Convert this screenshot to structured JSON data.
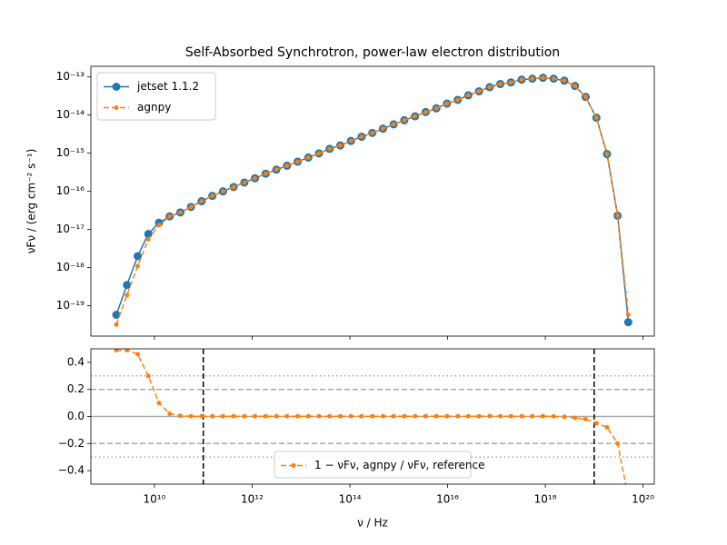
{
  "chart_data": [
    {
      "type": "line",
      "title": "Self-Absorbed Synchrotron, power-law electron distribution",
      "ylabel": "νFν / (erg cm⁻² s⁻¹)",
      "log_x": true,
      "log_y": true,
      "xlim": [
        500000000.0,
        1.7e+20
      ],
      "ylim": [
        1.6e-20,
        1.9e-13
      ],
      "xticks": [
        10000000000.0,
        1000000000000.0,
        100000000000000.0,
        1e+16,
        1e+18,
        1e+20
      ],
      "yticks": [
        {
          "value": 1e-19,
          "label": "10⁻¹⁹"
        },
        {
          "value": 1e-18,
          "label": "10⁻¹⁸"
        },
        {
          "value": 1e-17,
          "label": "10⁻¹⁷"
        },
        {
          "value": 1e-16,
          "label": "10⁻¹⁶"
        },
        {
          "value": 1e-15,
          "label": "10⁻¹⁵"
        },
        {
          "value": 1e-14,
          "label": "10⁻¹⁴"
        },
        {
          "value": 1e-13,
          "label": "10⁻¹³"
        }
      ],
      "legend": "upper left",
      "x": [
        1660000000.0,
        2740000000.0,
        4540000000.0,
        7500000000.0,
        12400000000.0,
        20500000000.0,
        33900000000.0,
        56000000000.0,
        92500000000.0,
        153000000000.0,
        253000000000.0,
        418000000000.0,
        692000000000.0,
        1140000000000.0,
        1890000000000.0,
        3130000000000.0,
        5160000000000.0,
        8530000000000.0,
        14100000000000.0,
        23300000000000.0,
        38500000000000.0,
        63700000000000.0,
        105000000000000.0,
        174000000000000.0,
        288000000000000.0,
        476000000000000.0,
        787000000000000.0,
        1300000000000000.0,
        2150000000000000.0,
        3560000000000000.0,
        5870000000000000.0,
        9710000000000000.0,
        1.61e+16,
        2.65e+16,
        4.39e+16,
        7.26e+16,
        1.2e+17,
        1.98e+17,
        3.28e+17,
        5.42e+17,
        8.95e+17,
        1.48e+18,
        2.45e+18,
        4.05e+18,
        6.68e+18,
        1.11e+19,
        1.83e+19,
        3.02e+19,
        4.99e+19
      ],
      "series": [
        {
          "name": "jetset 1.1.2",
          "color": "#1f77b4",
          "style": "solid",
          "marker_size": 4.5,
          "values": [
            5.8e-20,
            3.5e-19,
            2e-18,
            7.6e-18,
            1.5e-17,
            2.2e-17,
            2.8e-17,
            3.9e-17,
            5.5e-17,
            7.6e-17,
            1e-16,
            1.3e-16,
            1.7e-16,
            2.2e-16,
            2.9e-16,
            3.7e-16,
            4.7e-16,
            6e-16,
            7.7e-16,
            9.9e-16,
            1.3e-15,
            1.6e-15,
            2.1e-15,
            2.7e-15,
            3.4e-15,
            4.4e-15,
            5.7e-15,
            7.3e-15,
            9.3e-15,
            1.2e-14,
            1.5e-14,
            2e-14,
            2.5e-14,
            3.3e-14,
            4.2e-14,
            5.4e-14,
            6.5e-14,
            7.2e-14,
            8.5e-14,
            9e-14,
            9.5e-14,
            9e-14,
            8e-14,
            5.8e-14,
            3e-14,
            8.5e-15,
            9.5e-16,
            2.3e-17,
            3.7e-20
          ]
        },
        {
          "name": "agnpy",
          "color": "#ff7f0e",
          "style": "dashed",
          "marker_size": 2.5,
          "values": [
            3.2e-20,
            1.9e-19,
            1.1e-18,
            5.5e-18,
            1.3e-17,
            2.2e-17,
            2.8e-17,
            3.9e-17,
            5.5e-17,
            7.6e-17,
            1e-16,
            1.3e-16,
            1.7e-16,
            2.2e-16,
            2.9e-16,
            3.7e-16,
            4.7e-16,
            6e-16,
            7.7e-16,
            9.9e-16,
            1.3e-15,
            1.6e-15,
            2.1e-15,
            2.7e-15,
            3.4e-15,
            4.4e-15,
            5.7e-15,
            7.3e-15,
            9.3e-15,
            1.2e-14,
            1.5e-14,
            2e-14,
            2.5e-14,
            3.3e-14,
            4.2e-14,
            5.4e-14,
            6.5e-14,
            7.2e-14,
            8.5e-14,
            9e-14,
            9.5e-14,
            9e-14,
            8e-14,
            5.8e-14,
            3e-14,
            8.5e-15,
            9.5e-16,
            2.3e-17,
            5.8e-20
          ]
        }
      ]
    },
    {
      "type": "line",
      "xlabel": "ν / Hz",
      "log_x": true,
      "log_y": false,
      "xlim": [
        500000000.0,
        1.7e+20
      ],
      "ylim": [
        -0.5,
        0.5
      ],
      "xticks": [
        {
          "value": 10000000000.0,
          "label": "10¹⁰"
        },
        {
          "value": 1000000000000.0,
          "label": "10¹²"
        },
        {
          "value": 100000000000000.0,
          "label": "10¹⁴"
        },
        {
          "value": 1e+16,
          "label": "10¹⁶"
        },
        {
          "value": 1e+18,
          "label": "10¹⁸"
        },
        {
          "value": 1e+20,
          "label": "10²⁰"
        }
      ],
      "yticks": [
        {
          "value": -0.4,
          "label": "−0.4"
        },
        {
          "value": -0.2,
          "label": "−0.2"
        },
        {
          "value": 0,
          "label": "0.0"
        },
        0.2,
        0.4
      ],
      "hlines": [
        {
          "y": 0,
          "style": "solid",
          "color": "#aaaaaa"
        },
        {
          "y": 0.2,
          "style": "dashed",
          "color": "#aaaaaa"
        },
        {
          "y": -0.2,
          "style": "dashed",
          "color": "#aaaaaa"
        },
        {
          "y": 0.3,
          "style": "dotted",
          "color": "#aaaaaa"
        },
        {
          "y": -0.3,
          "style": "dotted",
          "color": "#aaaaaa"
        }
      ],
      "vlines": [
        {
          "x": 100000000000.0,
          "style": "dashed",
          "color": "#000000"
        },
        {
          "x": 1e+19,
          "style": "dashed",
          "color": "#000000"
        }
      ],
      "legend": "lower center",
      "x": [
        1660000000.0,
        2740000000.0,
        4540000000.0,
        7500000000.0,
        12400000000.0,
        20500000000.0,
        33900000000.0,
        56000000000.0,
        92500000000.0,
        153000000000.0,
        253000000000.0,
        418000000000.0,
        692000000000.0,
        1140000000000.0,
        1890000000000.0,
        3130000000000.0,
        5160000000000.0,
        8530000000000.0,
        14100000000000.0,
        23300000000000.0,
        38500000000000.0,
        63700000000000.0,
        105000000000000.0,
        174000000000000.0,
        288000000000000.0,
        476000000000000.0,
        787000000000000.0,
        1300000000000000.0,
        2150000000000000.0,
        3560000000000000.0,
        5870000000000000.0,
        9710000000000000.0,
        1.61e+16,
        2.65e+16,
        4.39e+16,
        7.26e+16,
        1.2e+17,
        1.98e+17,
        3.28e+17,
        5.42e+17,
        8.95e+17,
        1.48e+18,
        2.45e+18,
        4.05e+18,
        6.68e+18,
        1.11e+19,
        1.83e+19,
        3.02e+19,
        4.99e+19
      ],
      "series": [
        {
          "name": "1 − νFν, agnpy / νFν, reference",
          "color": "#ff7f0e",
          "style": "dashed",
          "marker_size": 2.5,
          "values": [
            0.49,
            0.49,
            0.46,
            0.3,
            0.1,
            0.02,
            0.005,
            0.002,
            0.002,
            0.002,
            0.002,
            0.002,
            0.002,
            0.002,
            0.002,
            0.002,
            0.002,
            0.002,
            0.002,
            0.002,
            0.002,
            0.002,
            0.002,
            0.002,
            0.002,
            0.002,
            0.002,
            0.002,
            0.002,
            0.002,
            0.002,
            0.002,
            0.002,
            0.002,
            0.002,
            0.003,
            0.002,
            0.002,
            0.002,
            0.002,
            0.002,
            0.001,
            -0.002,
            -0.01,
            -0.02,
            -0.05,
            -0.08,
            -0.2,
            -0.6
          ]
        }
      ]
    }
  ]
}
